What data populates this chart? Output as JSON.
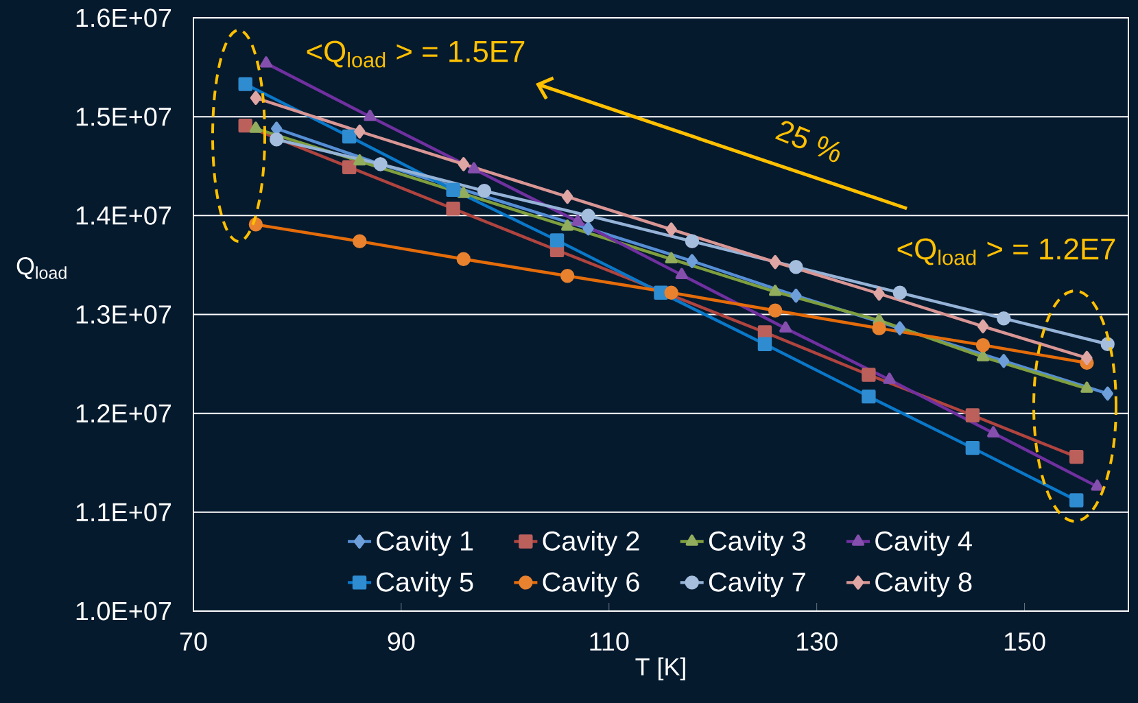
{
  "chart_data": {
    "type": "line",
    "xlabel": "T [K]",
    "ylabel": "Q$_{load}$",
    "xlim": [
      70,
      160
    ],
    "xticks": [
      70,
      90,
      110,
      130,
      150
    ],
    "ylim": [
      10000000,
      16000000
    ],
    "yticks": [
      {
        "value": 10000000,
        "label": "1.0E+07"
      },
      {
        "value": 11000000,
        "label": "1.1E+07"
      },
      {
        "value": 12000000,
        "label": "1.2E+07"
      },
      {
        "value": 13000000,
        "label": "1.3E+07"
      },
      {
        "value": 14000000,
        "label": "1.4E+07"
      },
      {
        "value": 15000000,
        "label": "1.5E+07"
      },
      {
        "value": 16000000,
        "label": "1.6E+07"
      }
    ],
    "grid": "y",
    "legend": "bottom",
    "series": [
      {
        "name": "Cavity 1",
        "color": "#558ed5",
        "marker": "diamond",
        "x": [
          78,
          88,
          98,
          108,
          118,
          128,
          138,
          148,
          158
        ],
        "values": [
          14880000,
          14520000,
          null,
          13870000,
          13540000,
          13190000,
          12860000,
          12530000,
          12200000
        ]
      },
      {
        "name": "Cavity 2",
        "color": "#b0443f",
        "marker": "square",
        "x": [
          75,
          85,
          95,
          105,
          115,
          125,
          135,
          145,
          155
        ],
        "values": [
          14910000,
          14490000,
          14070000,
          13650000,
          null,
          12820000,
          12390000,
          11980000,
          11560000
        ]
      },
      {
        "name": "Cavity 3",
        "color": "#7f9f3f",
        "marker": "triangle",
        "x": [
          76,
          86,
          96,
          106,
          116,
          126,
          136,
          146,
          156
        ],
        "values": [
          14880000,
          14550000,
          14220000,
          13890000,
          13560000,
          13230000,
          12940000,
          12570000,
          12250000
        ]
      },
      {
        "name": "Cavity 4",
        "color": "#7030a0",
        "marker": "triangle",
        "x": [
          77,
          87,
          97,
          107,
          117,
          127,
          137,
          147,
          157
        ],
        "values": [
          15540000,
          15000000,
          14470000,
          13940000,
          13400000,
          12860000,
          12340000,
          11800000,
          11260000
        ]
      },
      {
        "name": "Cavity 5",
        "color": "#0a78c8",
        "marker": "square",
        "x": [
          75,
          85,
          95,
          105,
          115,
          125,
          135,
          145,
          155
        ],
        "values": [
          15330000,
          14800000,
          14260000,
          13750000,
          13220000,
          12700000,
          12170000,
          11650000,
          11120000
        ]
      },
      {
        "name": "Cavity 6",
        "color": "#e46c0a",
        "marker": "circle",
        "x": [
          76,
          86,
          96,
          106,
          116,
          126,
          136,
          146,
          156
        ],
        "values": [
          13910000,
          13740000,
          13560000,
          13390000,
          13220000,
          13040000,
          12860000,
          12690000,
          12510000
        ]
      },
      {
        "name": "Cavity 7",
        "color": "#95b3d7",
        "marker": "circle",
        "x": [
          78,
          88,
          98,
          108,
          118,
          128,
          138,
          148,
          158
        ],
        "values": [
          14770000,
          14520000,
          14250000,
          14000000,
          13740000,
          13480000,
          13220000,
          12960000,
          12700000
        ]
      },
      {
        "name": "Cavity 8",
        "color": "#d99694",
        "marker": "diamond",
        "x": [
          76,
          86,
          96,
          106,
          116,
          126,
          136,
          146,
          156
        ],
        "values": [
          15190000,
          14850000,
          14520000,
          14190000,
          13860000,
          13530000,
          13210000,
          12880000,
          12560000
        ]
      }
    ],
    "annotations": [
      "<Q$_{load}$ > = 1.5E7",
      "25 %",
      "<Q$_{load}$ > = 1.2E7"
    ]
  }
}
